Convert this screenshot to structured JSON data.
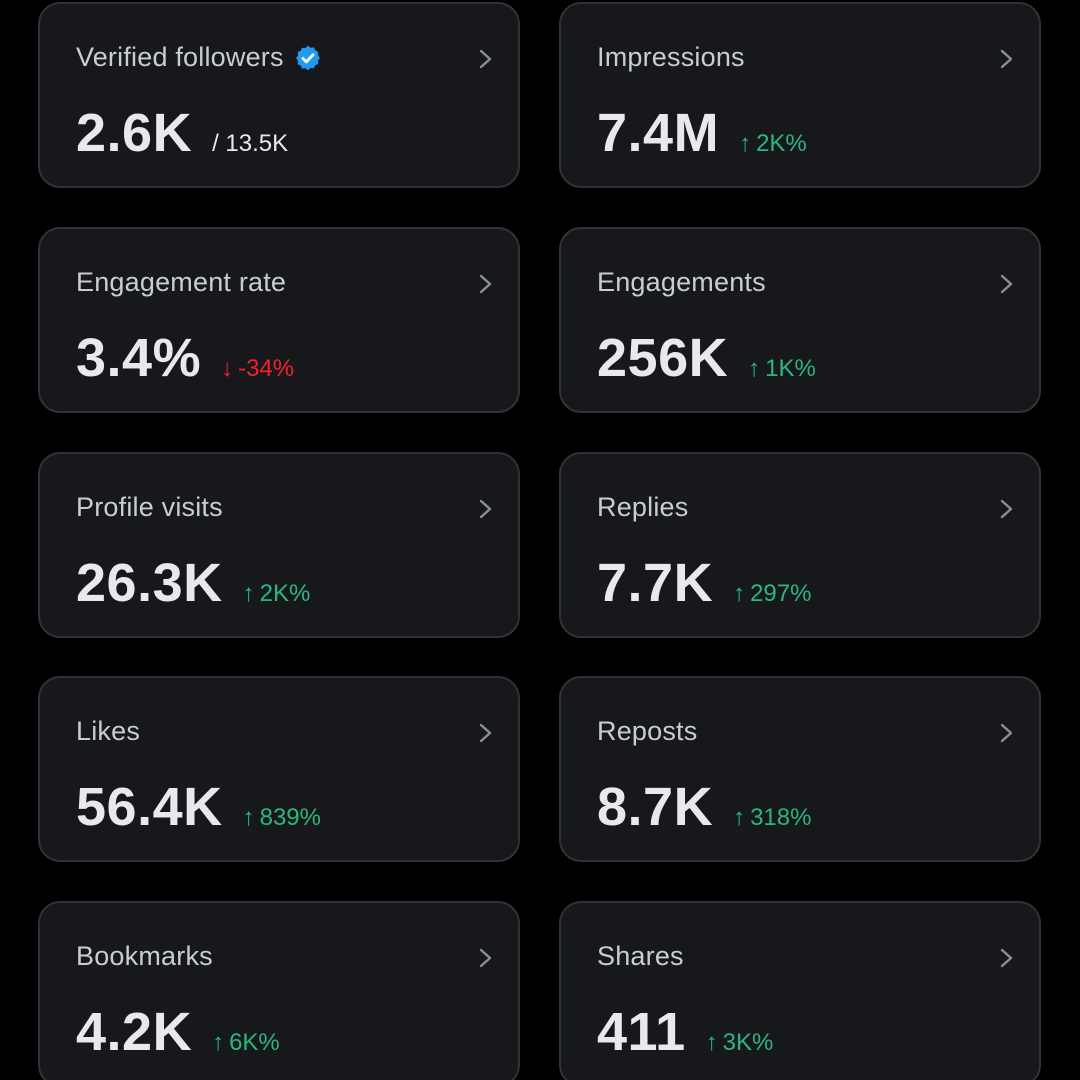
{
  "colors": {
    "background": "#000000",
    "card": "#17181c",
    "border": "#2f3336",
    "up": "#2cb67d",
    "down": "#f4212e",
    "verified": "#1d9bf0"
  },
  "cards": [
    {
      "label": "Verified followers",
      "value": "2.6K",
      "sub": "/ 13.5K",
      "verified_icon": "verified-badge-icon"
    },
    {
      "label": "Impressions",
      "value": "7.4M",
      "delta": "2K%",
      "direction": "up",
      "arrow": "↑"
    },
    {
      "label": "Engagement rate",
      "value": "3.4%",
      "delta": "-34%",
      "direction": "down",
      "arrow": "↓"
    },
    {
      "label": "Engagements",
      "value": "256K",
      "delta": "1K%",
      "direction": "up",
      "arrow": "↑"
    },
    {
      "label": "Profile visits",
      "value": "26.3K",
      "delta": "2K%",
      "direction": "up",
      "arrow": "↑"
    },
    {
      "label": "Replies",
      "value": "7.7K",
      "delta": "297%",
      "direction": "up",
      "arrow": "↑"
    },
    {
      "label": "Likes",
      "value": "56.4K",
      "delta": "839%",
      "direction": "up",
      "arrow": "↑"
    },
    {
      "label": "Reposts",
      "value": "8.7K",
      "delta": "318%",
      "direction": "up",
      "arrow": "↑"
    },
    {
      "label": "Bookmarks",
      "value": "4.2K",
      "delta": "6K%",
      "direction": "up",
      "arrow": "↑"
    },
    {
      "label": "Shares",
      "value": "411",
      "delta": "3K%",
      "direction": "up",
      "arrow": "↑"
    }
  ]
}
